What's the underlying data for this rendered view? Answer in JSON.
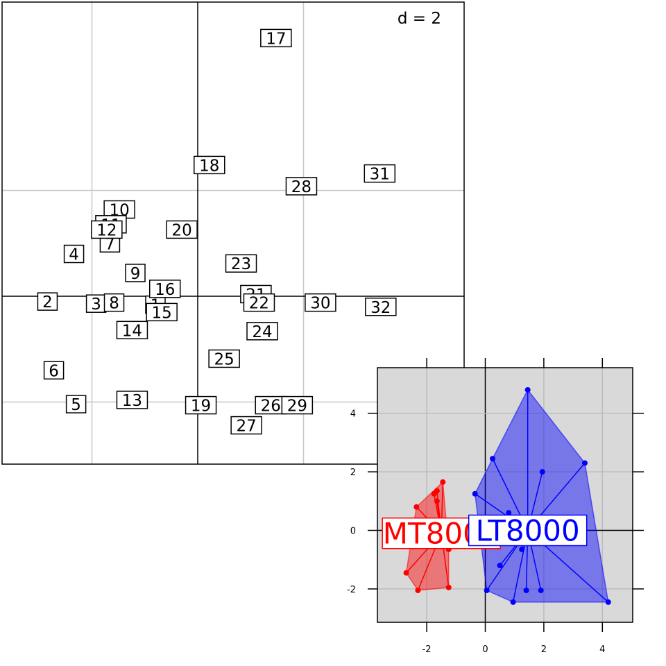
{
  "chart_data": [
    {
      "type": "scatter",
      "plot": "main-label-scatter",
      "annotation": "d = 2",
      "grid": true,
      "points": [
        {
          "label": "1",
          "x": -0.4,
          "y": -0.08
        },
        {
          "label": "2",
          "x": -1.42,
          "y": -0.05
        },
        {
          "label": "3",
          "x": -0.96,
          "y": -0.07
        },
        {
          "label": "4",
          "x": -1.17,
          "y": 0.4
        },
        {
          "label": "5",
          "x": -1.15,
          "y": -1.02
        },
        {
          "label": "6",
          "x": -1.36,
          "y": -0.7
        },
        {
          "label": "7",
          "x": -0.83,
          "y": 0.5
        },
        {
          "label": "8",
          "x": -0.79,
          "y": -0.06
        },
        {
          "label": "9",
          "x": -0.59,
          "y": 0.22
        },
        {
          "label": "10",
          "x": -0.74,
          "y": 0.82
        },
        {
          "label": "11",
          "x": -0.82,
          "y": 0.68
        },
        {
          "label": "12",
          "x": -0.86,
          "y": 0.63
        },
        {
          "label": "13",
          "x": -0.62,
          "y": -0.98
        },
        {
          "label": "14",
          "x": -0.62,
          "y": -0.32
        },
        {
          "label": "15",
          "x": -0.34,
          "y": -0.15
        },
        {
          "label": "16",
          "x": -0.31,
          "y": 0.07
        },
        {
          "label": "17",
          "x": 0.74,
          "y": 2.44
        },
        {
          "label": "18",
          "x": 0.11,
          "y": 1.24
        },
        {
          "label": "19",
          "x": 0.03,
          "y": -1.03
        },
        {
          "label": "20",
          "x": -0.15,
          "y": 0.63
        },
        {
          "label": "21",
          "x": 0.55,
          "y": 0.02
        },
        {
          "label": "22",
          "x": 0.58,
          "y": -0.06
        },
        {
          "label": "23",
          "x": 0.41,
          "y": 0.31
        },
        {
          "label": "24",
          "x": 0.61,
          "y": -0.33
        },
        {
          "label": "25",
          "x": 0.25,
          "y": -0.59
        },
        {
          "label": "26",
          "x": 0.69,
          "y": -1.03
        },
        {
          "label": "27",
          "x": 0.46,
          "y": -1.22
        },
        {
          "label": "28",
          "x": 0.98,
          "y": 1.04
        },
        {
          "label": "29",
          "x": 0.94,
          "y": -1.03
        },
        {
          "label": "30",
          "x": 1.16,
          "y": -0.06
        },
        {
          "label": "31",
          "x": 1.72,
          "y": 1.16
        },
        {
          "label": "32",
          "x": 1.73,
          "y": -0.1
        }
      ],
      "grid_lines_x": [
        -1,
        1
      ],
      "grid_lines_y": [
        -1,
        1
      ]
    },
    {
      "type": "scatter",
      "plot": "inset-group-scatter",
      "x_ticks": [
        "-2",
        "0",
        "2",
        "4"
      ],
      "y_ticks": [
        "-2",
        "0",
        "2",
        "4"
      ],
      "groups": [
        {
          "name": "MT8000",
          "color": "#ff0000",
          "center": [
            -1.5,
            -0.1
          ],
          "points": [
            [
              -1.45,
              1.65
            ],
            [
              -1.65,
              1.35
            ],
            [
              -1.75,
              1.25
            ],
            [
              -1.65,
              1.0
            ],
            [
              -2.35,
              0.8
            ],
            [
              -2.7,
              -1.45
            ],
            [
              -2.3,
              -2.05
            ],
            [
              -1.25,
              -1.95
            ],
            [
              -1.25,
              -0.65
            ]
          ]
        },
        {
          "name": "LT8000",
          "color": "#0000ff",
          "center": [
            1.45,
            0.0
          ],
          "points": [
            [
              1.45,
              4.8
            ],
            [
              3.4,
              2.3
            ],
            [
              0.25,
              2.45
            ],
            [
              1.95,
              2.0
            ],
            [
              -0.35,
              1.25
            ],
            [
              0.8,
              0.6
            ],
            [
              1.25,
              -0.65
            ],
            [
              0.5,
              -1.2
            ],
            [
              0.05,
              -2.05
            ],
            [
              0.95,
              -2.45
            ],
            [
              1.4,
              -2.05
            ],
            [
              1.9,
              -2.05
            ],
            [
              4.2,
              -2.45
            ]
          ]
        }
      ]
    }
  ]
}
